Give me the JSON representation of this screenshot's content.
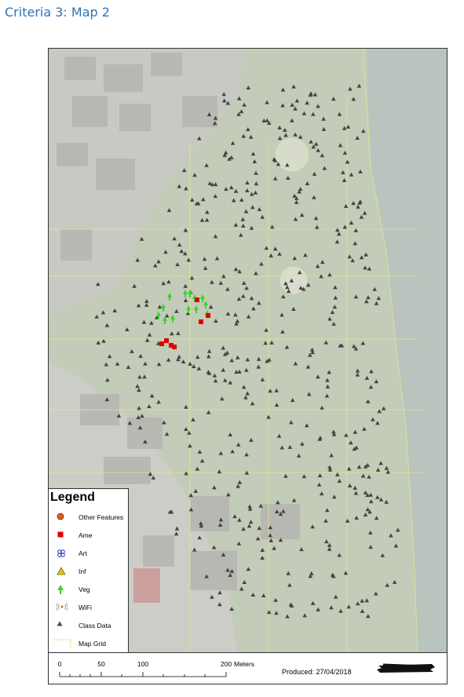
{
  "heading": "Criteria 3: Map 2",
  "legend": {
    "title": "Legend",
    "items": [
      {
        "label": "Other Features",
        "icon": "orange-circle-icon",
        "color": "#e35b1e"
      },
      {
        "label": "Ame",
        "icon": "red-square-icon",
        "color": "#e00000"
      },
      {
        "label": "Art",
        "icon": "art-icon",
        "color": "#2b2bd6"
      },
      {
        "label": "Inf",
        "icon": "yellow-triangle-icon",
        "color": "#e6c21c"
      },
      {
        "label": "Veg",
        "icon": "green-tree-icon",
        "color": "#39d629"
      },
      {
        "label": "WiFi",
        "icon": "wifi-icon",
        "color": "#c58a3a"
      },
      {
        "label": "Class Data",
        "icon": "dark-triangle-icon",
        "color": "#4a4a4a"
      },
      {
        "label": "Map Grid",
        "icon": "grid-line-icon",
        "color": "#e7e88a"
      }
    ]
  },
  "scale": {
    "ticks": [
      "0",
      "50",
      "100",
      "200"
    ],
    "units": "Meters"
  },
  "produced": "Produced: 27/04/2018"
}
